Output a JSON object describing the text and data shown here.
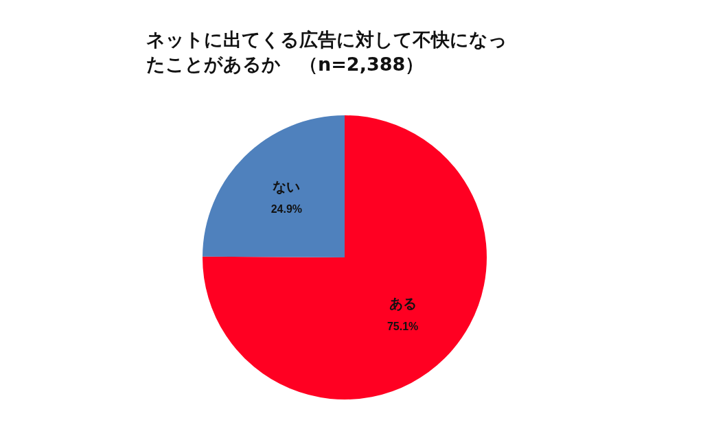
{
  "chart_data": {
    "type": "pie",
    "title": "ネットに出てくる広告に対して不快になったことがあるか　（n=2,388）",
    "categories": [
      "ある",
      "ない"
    ],
    "values": [
      75.1,
      24.9
    ],
    "value_labels": [
      "75.1%",
      "24.9%"
    ],
    "colors": [
      "#ff0022",
      "#4f81bd"
    ],
    "legend": false
  }
}
